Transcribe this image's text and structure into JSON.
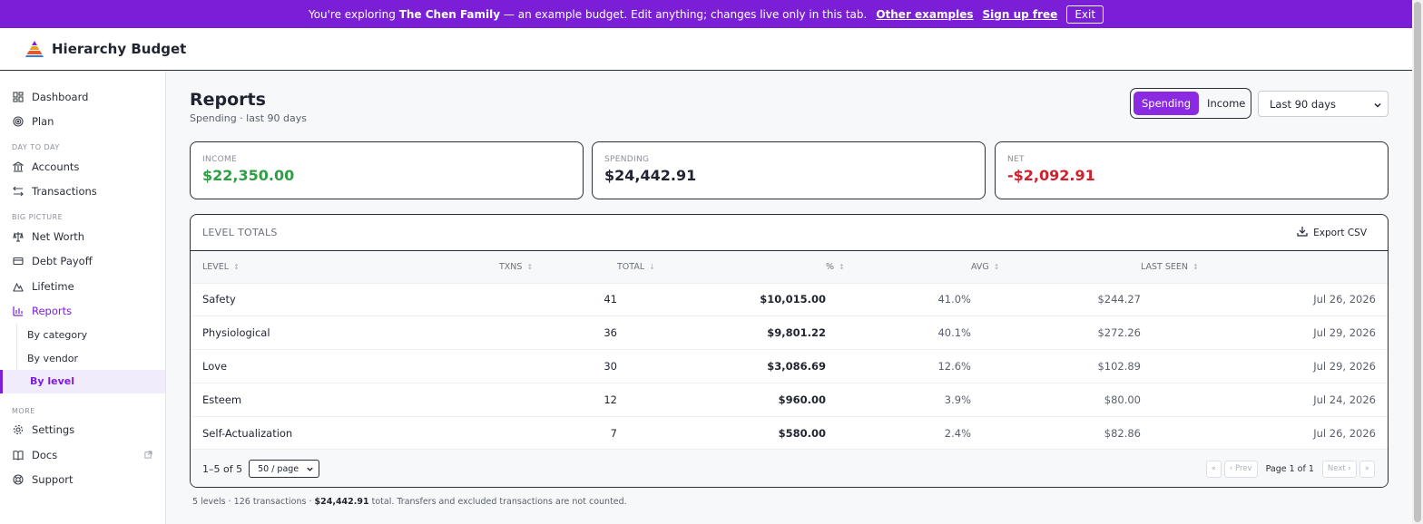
{
  "banner": {
    "prefix": "You're exploring ",
    "family": "The Chen Family",
    "suffix": " — an example budget. Edit anything; changes live only in this tab.",
    "other_examples": "Other examples",
    "sign_up": "Sign up free",
    "exit": "Exit",
    "color": "#7a1fd6"
  },
  "app": {
    "name": "Hierarchy Budget",
    "logo_icon": "pyramid-logo"
  },
  "sidebar": {
    "top": [
      {
        "label": "Dashboard",
        "icon": "dashboard-icon"
      },
      {
        "label": "Plan",
        "icon": "target-icon"
      }
    ],
    "sections": {
      "day": "DAY TO DAY",
      "big": "BIG PICTURE",
      "more": "MORE"
    },
    "day": [
      {
        "label": "Accounts",
        "icon": "bank-icon"
      },
      {
        "label": "Transactions",
        "icon": "transfer-icon"
      }
    ],
    "big": [
      {
        "label": "Net Worth",
        "icon": "scale-icon"
      },
      {
        "label": "Debt Payoff",
        "icon": "card-icon"
      },
      {
        "label": "Lifetime",
        "icon": "mountain-icon"
      },
      {
        "label": "Reports",
        "icon": "bar-chart-icon"
      }
    ],
    "reports_sub": [
      "By category",
      "By vendor",
      "By level"
    ],
    "more": [
      {
        "label": "Settings",
        "icon": "gear-icon"
      },
      {
        "label": "Docs",
        "icon": "book-icon"
      },
      {
        "label": "Support",
        "icon": "lifebuoy-icon"
      }
    ]
  },
  "header": {
    "title": "Reports",
    "subtitle": "Spending · last 90 days",
    "toggle": [
      "Spending",
      "Income"
    ],
    "toggle_active": "Spending",
    "range": "Last 90 days"
  },
  "cards": [
    {
      "label": "INCOME",
      "value": "$22,350.00",
      "color": "#2f9e44"
    },
    {
      "label": "SPENDING",
      "value": "$24,442.91",
      "color": "#1f2430"
    },
    {
      "label": "NET",
      "value": "-$2,092.91",
      "color": "#d0202e"
    }
  ],
  "table": {
    "title": "LEVEL TOTALS",
    "export": "Export CSV",
    "columns": [
      "LEVEL",
      "TXNS",
      "TOTAL",
      "%",
      "AVG",
      "LAST SEEN"
    ],
    "sort_glyphs": [
      "↕",
      "↕",
      "↓",
      "↕",
      "↕",
      "↕"
    ],
    "rows": [
      {
        "level": "Safety",
        "txns": "41",
        "total": "$10,015.00",
        "pct": "41.0%",
        "avg": "$244.27",
        "last": "Jul 26, 2026"
      },
      {
        "level": "Physiological",
        "txns": "36",
        "total": "$9,801.22",
        "pct": "40.1%",
        "avg": "$272.26",
        "last": "Jul 29, 2026"
      },
      {
        "level": "Love",
        "txns": "30",
        "total": "$3,086.69",
        "pct": "12.6%",
        "avg": "$102.89",
        "last": "Jul 29, 2026"
      },
      {
        "level": "Esteem",
        "txns": "12",
        "total": "$960.00",
        "pct": "3.9%",
        "avg": "$80.00",
        "last": "Jul 24, 2026"
      },
      {
        "level": "Self-Actualization",
        "txns": "7",
        "total": "$580.00",
        "pct": "2.4%",
        "avg": "$82.86",
        "last": "Jul 26, 2026"
      }
    ],
    "count": "1–5 of 5",
    "per_page": "50 / page",
    "pager": {
      "first": "«",
      "prev": "‹ Prev",
      "info": "Page 1 of 1",
      "next": "Next ›",
      "last": "»"
    }
  },
  "summary": {
    "pre": "5 levels · 126 transactions · ",
    "total": "$24,442.91",
    "post": " total. Transfers and excluded transactions are not counted."
  }
}
